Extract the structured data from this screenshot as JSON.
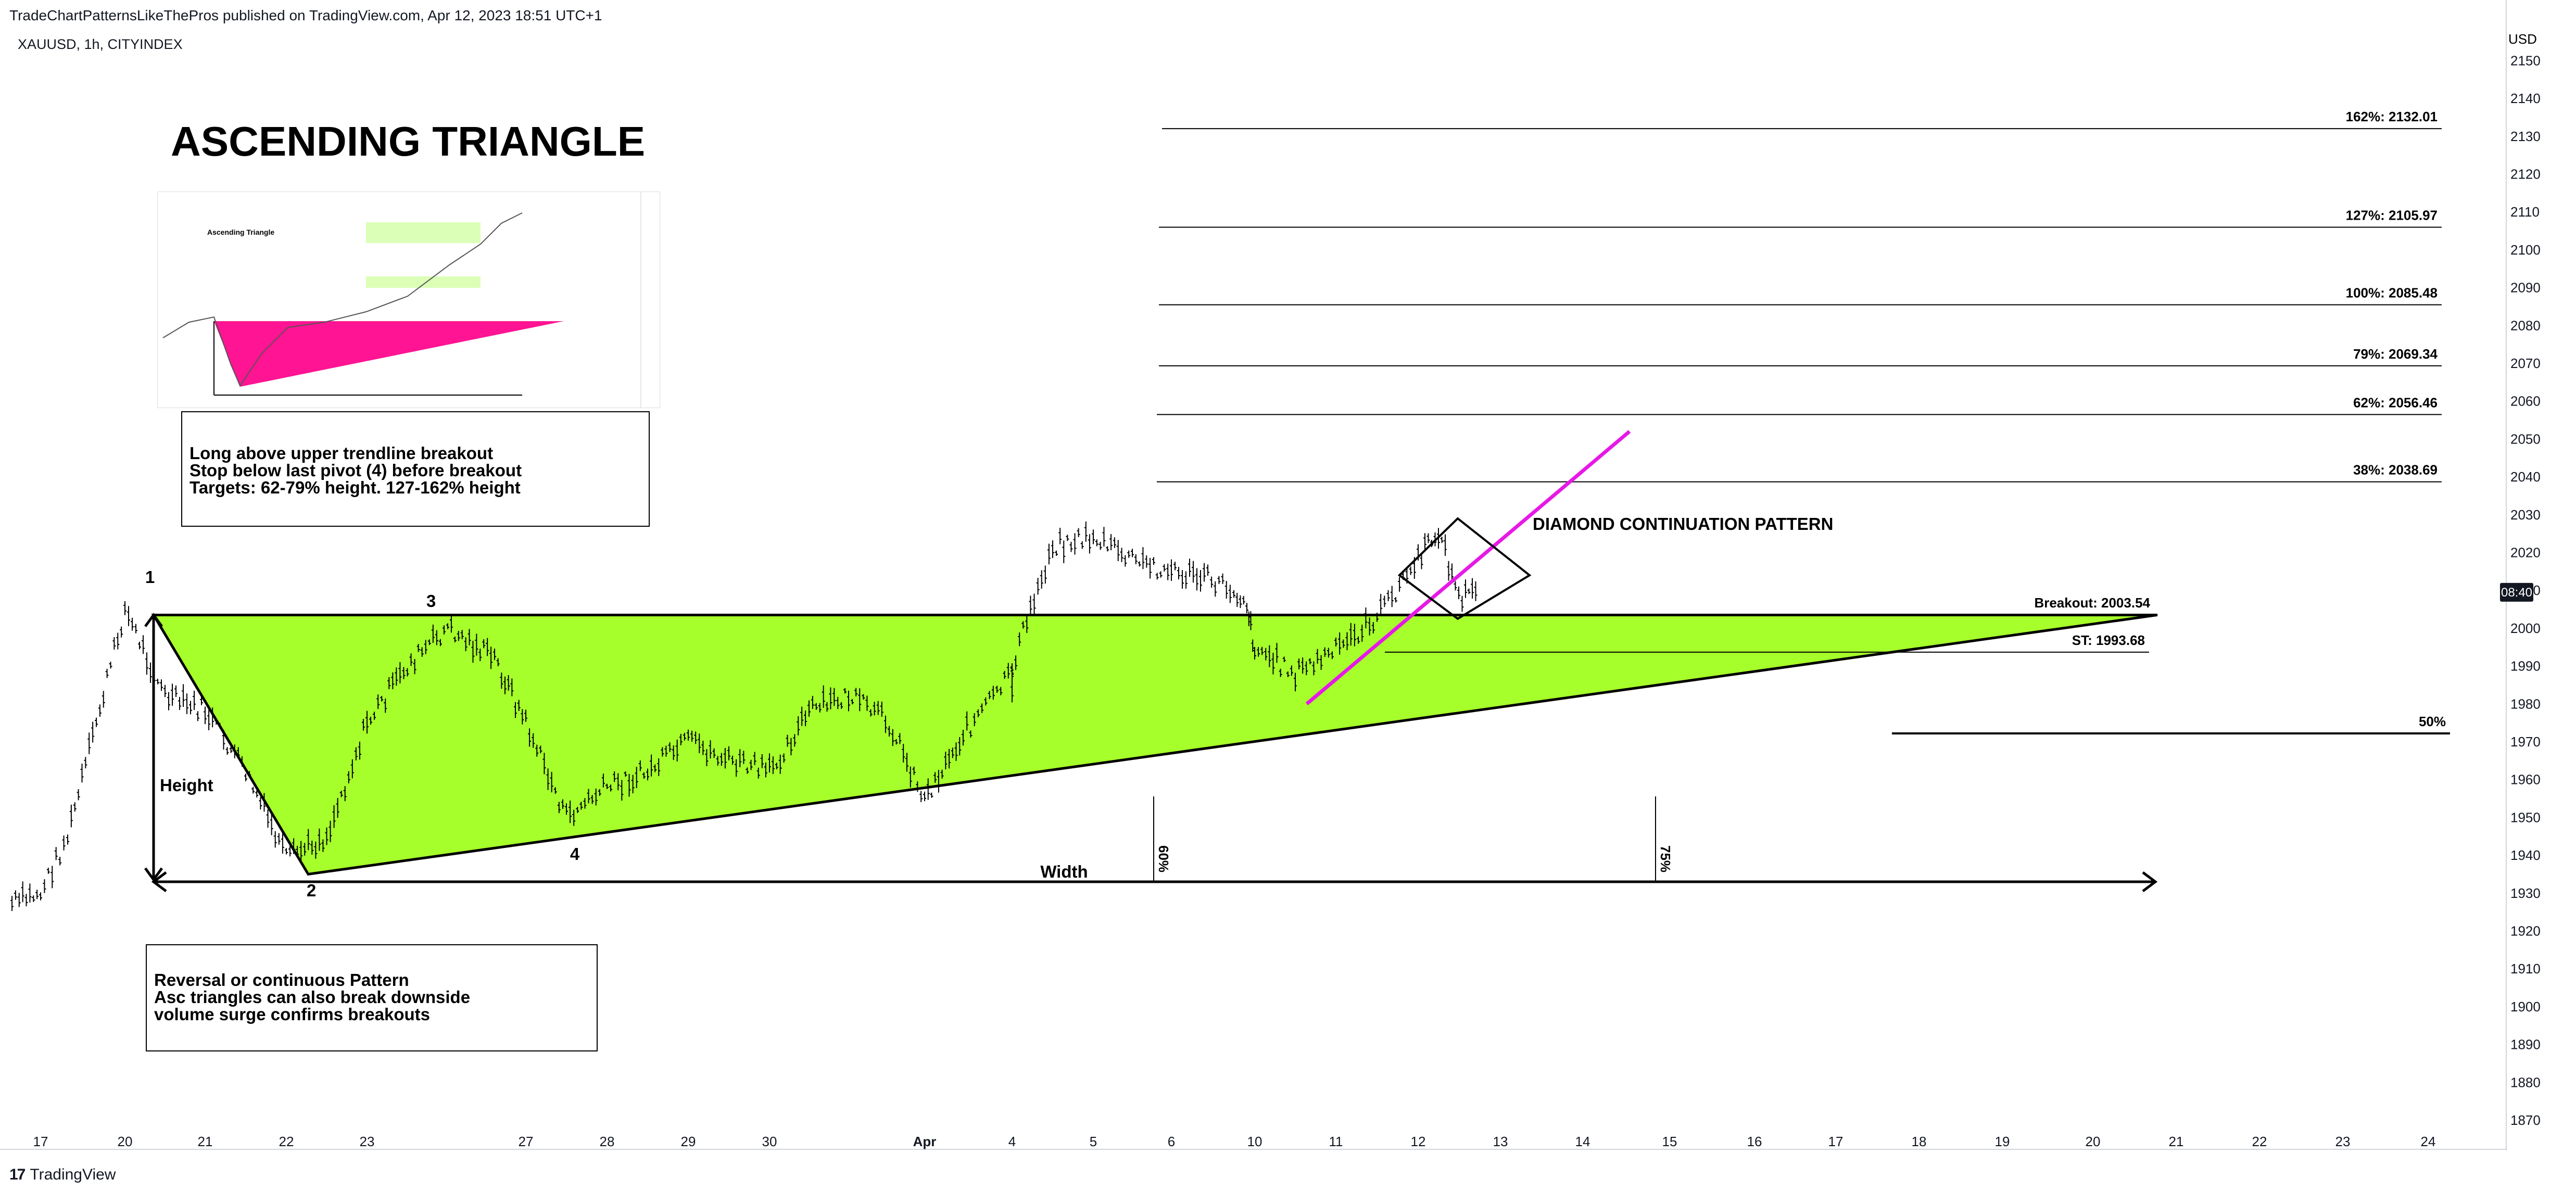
{
  "header": {
    "published": "TradeChartPatternsLikeThePros published on TradingView.com, Apr 12, 2023 18:51 UTC+1",
    "symbol": "XAUUSD, 1h, CITYINDEX"
  },
  "footer": {
    "brand": "TradingView",
    "logo_glyph": "17"
  },
  "annotations": {
    "title": "ASCENDING TRIANGLE",
    "strategy_notes": [
      "Long above upper trendline breakout",
      "Stop below last pivot (4) before breakout",
      "Targets: 62-79% height. 127-162% height"
    ],
    "pattern_notes": [
      "Reversal or continuous Pattern",
      "Asc triangles can also break downside",
      "volume surge confirms breakouts"
    ],
    "diamond_label": "DIAMOND CONTINUATION PATTERN",
    "pivot_labels": [
      "1",
      "2",
      "3",
      "4"
    ],
    "height_label": "Height",
    "width_label": "Width",
    "vertical_marks": [
      "60%",
      "75%"
    ]
  },
  "thumbnail": {
    "title": "Ascending Triangle",
    "triangle_color": "#ff1493"
  },
  "chart_data": {
    "type": "ohlc",
    "symbol": "XAUUSD",
    "interval": "1h",
    "currency": "USD",
    "price_badge": "08:40",
    "ylim": [
      1865,
      2155
    ],
    "y_ticks": [
      1870,
      1880,
      1890,
      1900,
      1910,
      1920,
      1930,
      1940,
      1950,
      1960,
      1970,
      1980,
      1990,
      2000,
      2010,
      2020,
      2030,
      2040,
      2050,
      2060,
      2070,
      2080,
      2090,
      2100,
      2110,
      2120,
      2130,
      2140,
      2150
    ],
    "x_ticks": [
      "17",
      "20",
      "21",
      "22",
      "23",
      "27",
      "28",
      "29",
      "30",
      "Apr",
      "4",
      "5",
      "6",
      "10",
      "11",
      "12",
      "13",
      "14",
      "15",
      "16",
      "17",
      "18",
      "19",
      "20",
      "21",
      "22",
      "23",
      "24"
    ],
    "levels": [
      {
        "label": "162%: 2132.01",
        "value": 2132.01
      },
      {
        "label": "127%: 2105.97",
        "value": 2105.97
      },
      {
        "label": "100%: 2085.48",
        "value": 2085.48
      },
      {
        "label": "79%: 2069.34",
        "value": 2069.34
      },
      {
        "label": "62%: 2056.46",
        "value": 2056.46
      },
      {
        "label": "38%: 2038.69",
        "value": 2038.69
      },
      {
        "label": "Breakout: 2003.54",
        "value": 2003.54
      },
      {
        "label": "ST: 1993.68",
        "value": 1993.68
      },
      {
        "label": "50%",
        "value": 1972.2
      }
    ],
    "triangle": {
      "apex_top": {
        "date": "Mar 20",
        "price": 2003.5
      },
      "low": {
        "date": "Mar 22",
        "price": 1935
      },
      "right": {
        "date": "Apr 20",
        "price": 2003.5
      },
      "fill": "#a6ff2a"
    },
    "diamond_color": "#000000",
    "projection_color": "#e619e6",
    "candle_color": "#000000",
    "close_path": [
      [
        "Mar 16",
        1922
      ],
      [
        "Mar 17",
        1930
      ],
      [
        "Mar 18",
        1945
      ],
      [
        "Mar 19",
        1975
      ],
      [
        "Mar 20",
        2005
      ],
      [
        "Mar 20 12h",
        1982
      ],
      [
        "Mar 21",
        1978
      ],
      [
        "Mar 21 12h",
        1962
      ],
      [
        "Mar 22",
        1939
      ],
      [
        "Mar 22 12h",
        1945
      ],
      [
        "Mar 23",
        1975
      ],
      [
        "Mar 23 12h",
        1990
      ],
      [
        "Mar 24",
        2000
      ],
      [
        "Mar 26",
        1992
      ],
      [
        "Mar 27",
        1975
      ],
      [
        "Mar 27 12h",
        1950
      ],
      [
        "Mar 28",
        1958
      ],
      [
        "Mar 28 12h",
        1962
      ],
      [
        "Mar 29",
        1970
      ],
      [
        "Mar 29 12h",
        1965
      ],
      [
        "Mar 30",
        1962
      ],
      [
        "Mar 30 12h",
        1978
      ],
      [
        "Mar 31",
        1982
      ],
      [
        "Mar 31 12h",
        1975
      ],
      [
        "Apr 1",
        1955
      ],
      [
        "Apr 2",
        1972
      ],
      [
        "Apr 3",
        1988
      ],
      [
        "Apr 3 12h",
        1985
      ],
      [
        "Apr 4",
        1990
      ],
      [
        "Apr 4 12h",
        2022
      ],
      [
        "Apr 5",
        2024
      ],
      [
        "Apr 5 12h",
        2018
      ],
      [
        "Apr 6",
        2015
      ],
      [
        "Apr 7",
        2013
      ],
      [
        "Apr 8",
        2010
      ],
      [
        "Apr 9",
        2007
      ],
      [
        "Apr 9 12h",
        2000
      ],
      [
        "Apr 10",
        1995
      ],
      [
        "Apr 10 12h",
        1988
      ],
      [
        "Apr 11",
        1994
      ],
      [
        "Apr 11 12h",
        2003
      ],
      [
        "Apr 12",
        2018
      ],
      [
        "Apr 12 6h",
        2026
      ],
      [
        "Apr 12 12h",
        2008
      ],
      [
        "Apr 12 18h",
        2010
      ]
    ]
  }
}
